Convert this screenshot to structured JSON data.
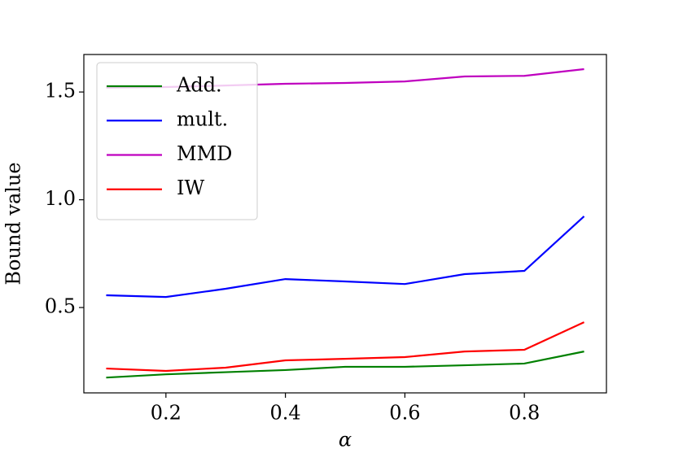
{
  "chart_data": {
    "type": "line",
    "x_label": "α",
    "y_label": "Bound value",
    "x": [
      0.1,
      0.2,
      0.3,
      0.4,
      0.5,
      0.6,
      0.7,
      0.8,
      0.9
    ],
    "series": [
      {
        "name": "Add.",
        "color": "#008000",
        "values": [
          0.175,
          0.19,
          0.2,
          0.21,
          0.225,
          0.225,
          0.232,
          0.24,
          0.296
        ]
      },
      {
        "name": "mult.",
        "color": "#0000ff",
        "values": [
          0.557,
          0.549,
          0.587,
          0.632,
          0.621,
          0.609,
          0.655,
          0.67,
          0.923
        ]
      },
      {
        "name": "MMD",
        "color": "#bf00bf",
        "values": [
          1.52,
          1.523,
          1.53,
          1.538,
          1.542,
          1.549,
          1.572,
          1.575,
          1.606
        ]
      },
      {
        "name": "IW",
        "color": "#ff0000",
        "values": [
          0.217,
          0.206,
          0.221,
          0.255,
          0.262,
          0.27,
          0.296,
          0.304,
          0.432
        ]
      }
    ],
    "xlim": [
      0.0626,
      0.9374
    ],
    "ylim": [
      0.104,
      1.674
    ],
    "xticks": [
      0.2,
      0.4,
      0.6,
      0.8
    ],
    "yticks": [
      0.5,
      1.0,
      1.5
    ],
    "legend": "upper left",
    "grid": false
  }
}
